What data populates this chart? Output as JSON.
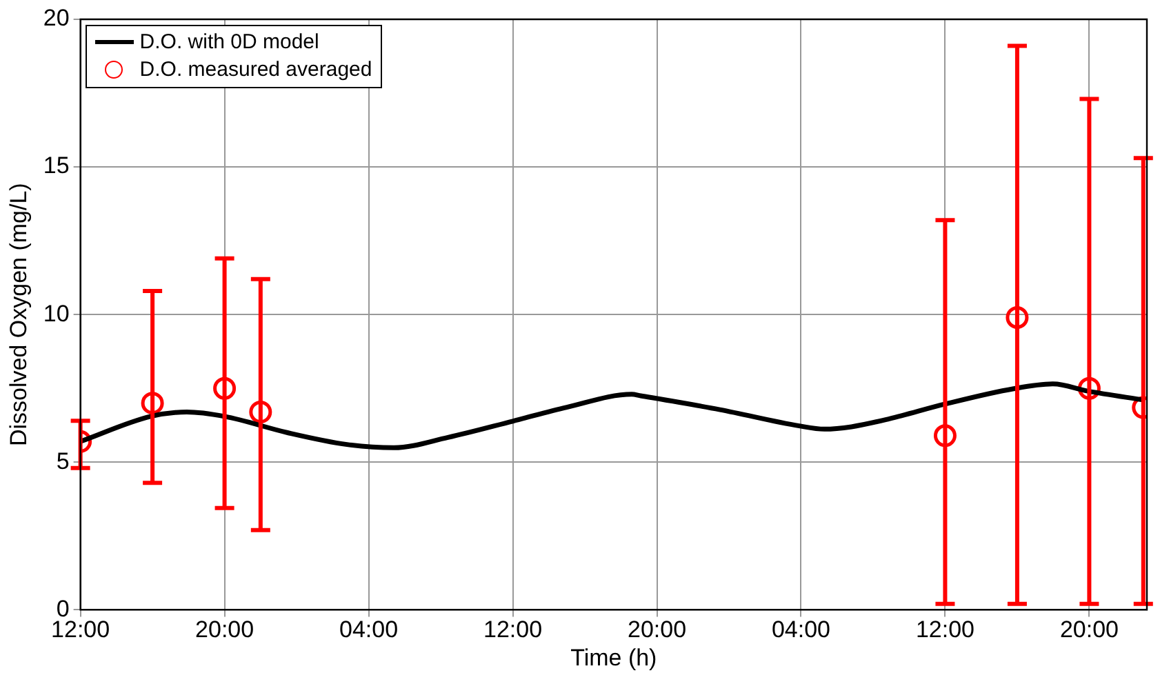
{
  "chart_data": {
    "type": "line",
    "xlabel": "Time (h)",
    "ylabel": "Dissolved Oxygen (mg/L)",
    "xlim": [
      "2000-01-01T12:00",
      "2000-01-03T23:12"
    ],
    "ylim": [
      0,
      20
    ],
    "xticks": [
      {
        "value": "2000-01-01T12:00",
        "label": "12:00"
      },
      {
        "value": "2000-01-01T20:00",
        "label": "20:00"
      },
      {
        "value": "2000-01-02T04:00",
        "label": "04:00"
      },
      {
        "value": "2000-01-02T12:00",
        "label": "12:00"
      },
      {
        "value": "2000-01-02T20:00",
        "label": "20:00"
      },
      {
        "value": "2000-01-03T04:00",
        "label": "04:00"
      },
      {
        "value": "2000-01-03T12:00",
        "label": "12:00"
      },
      {
        "value": "2000-01-03T20:00",
        "label": "20:00"
      }
    ],
    "yticks": [
      0,
      5,
      10,
      15,
      20
    ],
    "grid": true,
    "legend": "top left",
    "series": [
      {
        "name": "D.O. with 0D model",
        "color": "#000000",
        "marker": "none",
        "line_style": "solid",
        "x": [
          "2000-01-01T12:00",
          "2000-01-01T15:54",
          "2000-01-01T17:54",
          "2000-01-01T20:00",
          "2000-01-01T23:30",
          "2000-01-02T02:48",
          "2000-01-02T05:24",
          "2000-01-02T08:24",
          "2000-01-02T12:00",
          "2000-01-02T15:00",
          "2000-01-02T18:36",
          "2000-01-02T19:06",
          "2000-01-02T23:30",
          "2000-01-03T03:54",
          "2000-01-03T05:18",
          "2000-01-03T06:48",
          "2000-01-03T08:54",
          "2000-01-03T12:00",
          "2000-01-03T15:48",
          "2000-01-03T18:00",
          "2000-01-03T19:54",
          "2000-01-03T23:06"
        ],
        "values": [
          5.7,
          6.55,
          6.7,
          6.55,
          6.0,
          5.6,
          5.49,
          5.84,
          6.39,
          6.86,
          7.3,
          7.25,
          6.78,
          6.23,
          6.12,
          6.2,
          6.47,
          6.97,
          7.49,
          7.65,
          7.41,
          7.1
        ]
      },
      {
        "name": "D.O. measured averaged",
        "type": "scatter",
        "color": "#ff0000",
        "marker": "circle",
        "x": [
          "2000-01-01T12:00",
          "2000-01-01T16:00",
          "2000-01-01T20:00",
          "2000-01-01T22:00",
          "2000-01-03T12:00",
          "2000-01-03T16:00",
          "2000-01-03T20:00",
          "2000-01-03T23:00"
        ],
        "values": [
          5.7,
          7.0,
          7.5,
          6.7,
          5.9,
          9.9,
          7.5,
          6.85
        ],
        "errors": [
          [
            4.8,
            6.4
          ],
          [
            4.3,
            10.8
          ],
          [
            3.45,
            11.9
          ],
          [
            2.7,
            11.2
          ],
          [
            0.2,
            13.2
          ],
          [
            0.2,
            19.1
          ],
          [
            0.2,
            17.3
          ],
          [
            0.2,
            15.3
          ]
        ]
      }
    ]
  }
}
